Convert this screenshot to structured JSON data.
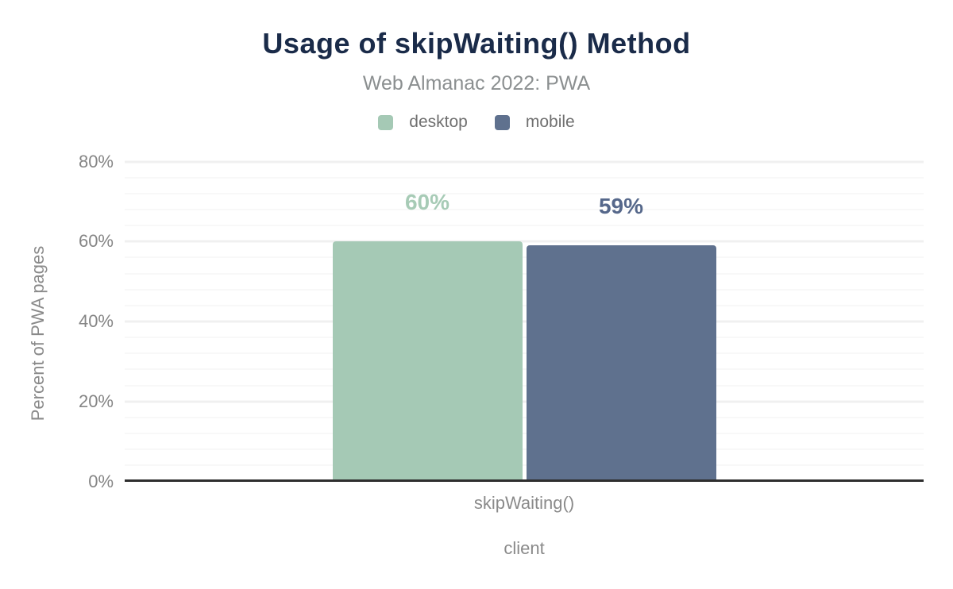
{
  "chart_data": {
    "type": "bar",
    "title": "Usage of skipWaiting() Method",
    "subtitle": "Web Almanac 2022: PWA",
    "categories": [
      "skipWaiting()"
    ],
    "series": [
      {
        "name": "desktop",
        "values": [
          60
        ],
        "value_labels": [
          "60%"
        ],
        "color": "#a5c9b5",
        "label_color": "#a7cbb6"
      },
      {
        "name": "mobile",
        "values": [
          59
        ],
        "value_labels": [
          "59%"
        ],
        "color": "#5f718e",
        "label_color": "#56688b"
      }
    ],
    "xlabel": "client",
    "ylabel": "Percent of PWA pages",
    "ylim": [
      0,
      80
    ],
    "y_tick_step": 20,
    "y_minor_grid_step": 4,
    "y_tick_labels": [
      "0%",
      "20%",
      "40%",
      "60%",
      "80%"
    ],
    "grid": "on",
    "legend_position": "top-center"
  },
  "colors": {
    "title": "#1a2b49",
    "subtitle": "#8b8f90",
    "axis_text": "#8a8a8a",
    "legend_text": "#6f6f6f",
    "axis_line": "#2e2e2e",
    "grid_major": "#f0f0f0",
    "grid_minor": "#f8f8f8",
    "background": "#ffffff"
  }
}
